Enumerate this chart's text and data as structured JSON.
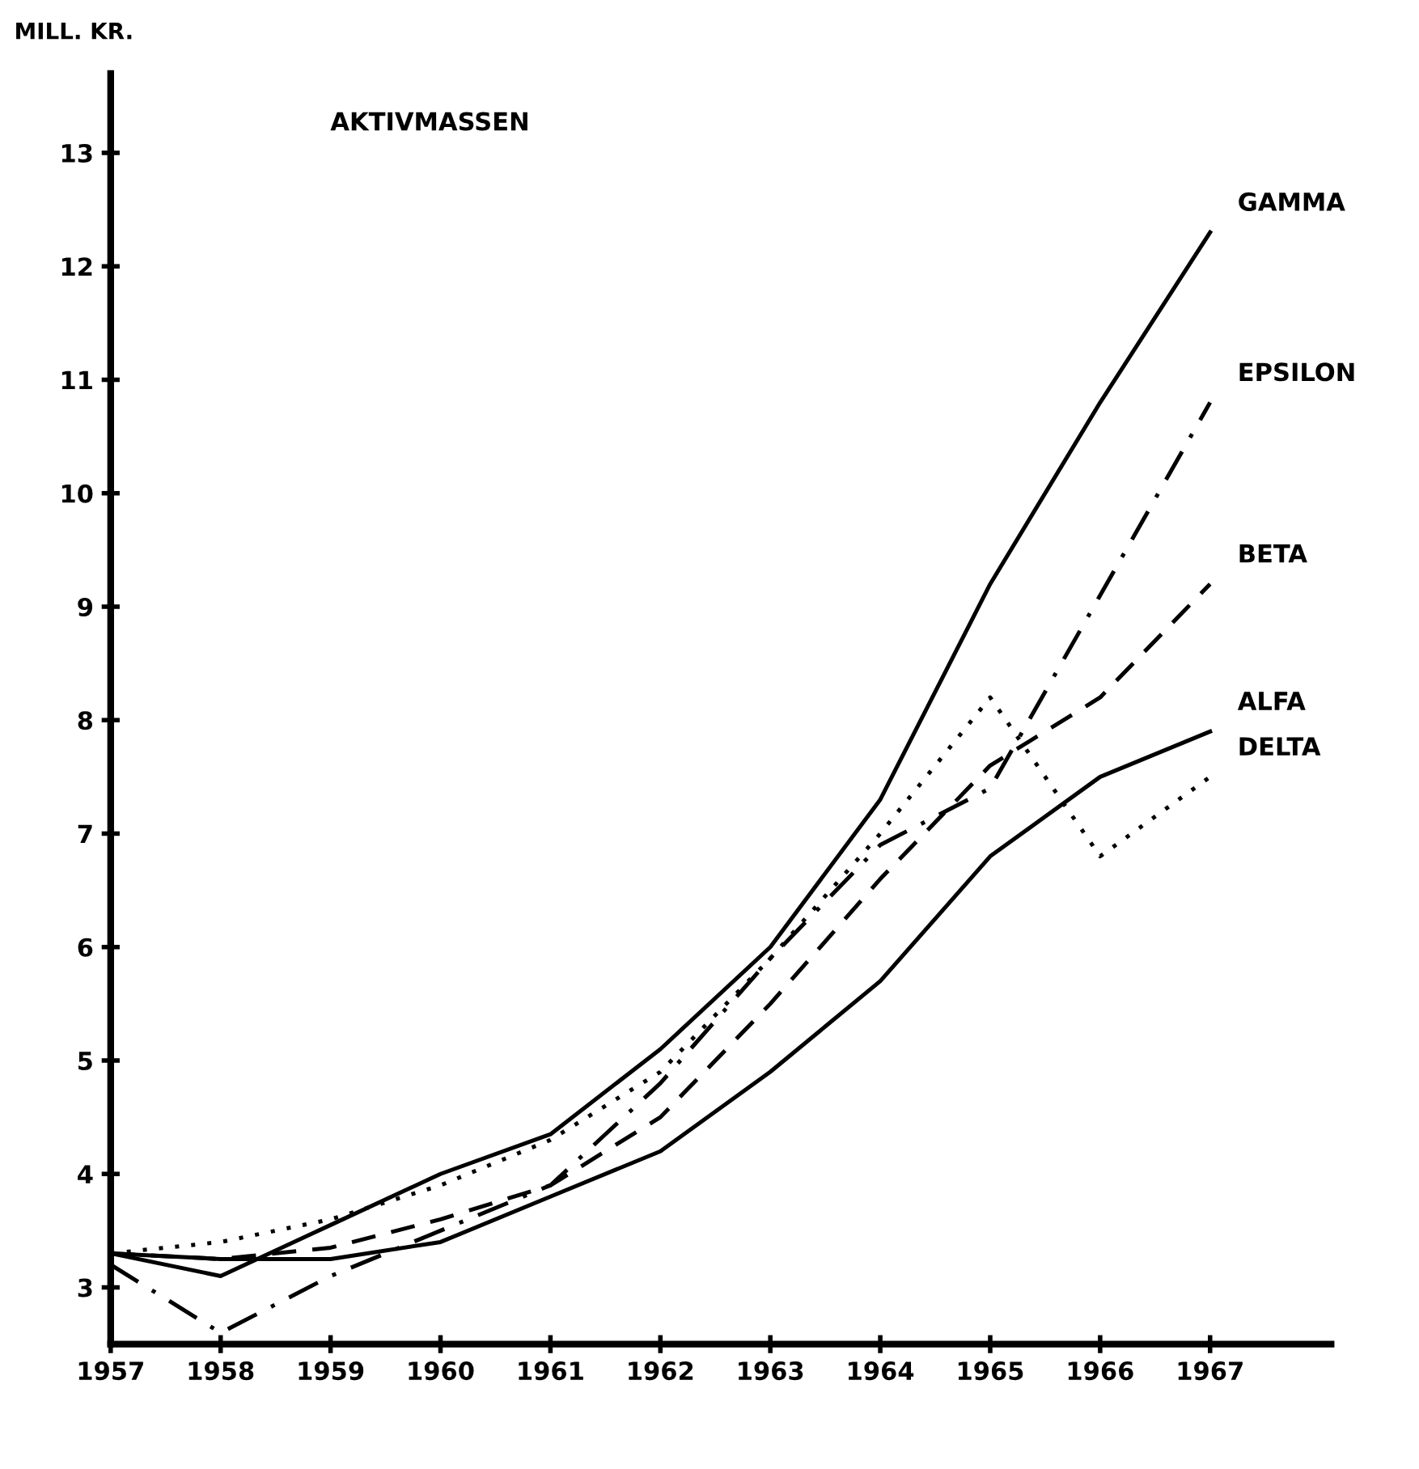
{
  "chart_data": {
    "type": "line",
    "title": "AKTIVMASSEN",
    "ylabel": "MILL. KR.",
    "x": [
      1957,
      1958,
      1959,
      1960,
      1961,
      1962,
      1963,
      1964,
      1965,
      1966,
      1967
    ],
    "xlim": [
      1957,
      1968.1
    ],
    "xticks": [
      1957,
      1958,
      1959,
      1960,
      1961,
      1962,
      1963,
      1964,
      1965,
      1966,
      1967
    ],
    "ylim": [
      2.5,
      13.7
    ],
    "yticks": [
      3,
      4,
      5,
      6,
      7,
      8,
      9,
      10,
      11,
      12,
      13
    ],
    "grid": false,
    "legend": false,
    "series": [
      {
        "name": "GAMMA",
        "color": "#000000",
        "line_style": "solid",
        "values": [
          3.3,
          3.1,
          3.55,
          4.0,
          4.35,
          5.1,
          6.0,
          7.3,
          9.2,
          10.8,
          12.3
        ]
      },
      {
        "name": "EPSILON",
        "color": "#000000",
        "line_style": "dashdot",
        "values": [
          3.2,
          2.6,
          3.1,
          3.5,
          3.9,
          4.8,
          5.9,
          6.9,
          7.4,
          9.1,
          10.8
        ]
      },
      {
        "name": "BETA",
        "color": "#000000",
        "line_style": "dashed",
        "values": [
          3.3,
          3.25,
          3.35,
          3.6,
          3.9,
          4.5,
          5.5,
          6.6,
          7.6,
          8.2,
          9.2
        ]
      },
      {
        "name": "ALFA",
        "color": "#000000",
        "line_style": "solid",
        "values": [
          3.3,
          3.25,
          3.25,
          3.4,
          3.8,
          4.2,
          4.9,
          5.7,
          6.8,
          7.5,
          7.9
        ]
      },
      {
        "name": "DELTA",
        "color": "#000000",
        "line_style": "dotted",
        "values": [
          3.3,
          3.4,
          3.6,
          3.9,
          4.3,
          4.9,
          5.9,
          7.0,
          8.2,
          6.8,
          7.5
        ]
      }
    ]
  }
}
